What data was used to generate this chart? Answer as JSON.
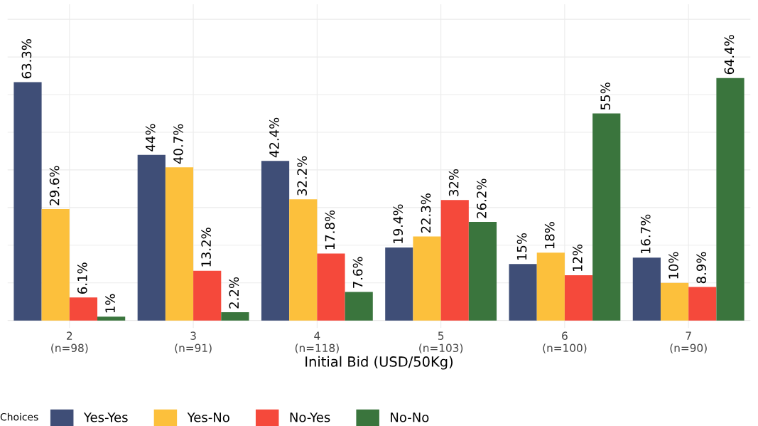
{
  "chart_data": {
    "type": "bar",
    "xlabel": "Initial Bid (USD/50Kg)",
    "legend_title": "Choices",
    "categories": [
      "2\n(n=98)",
      "3\n(n=91)",
      "4\n(n=118)",
      "5\n(n=103)",
      "6\n(n=100)",
      "7\n(n=90)"
    ],
    "series": [
      {
        "name": "Yes-Yes",
        "color": "#3f4e77",
        "values": [
          63.3,
          44,
          42.4,
          19.4,
          15,
          16.7
        ],
        "value_labels": [
          "63.3%",
          "44%",
          "42.4%",
          "19.4%",
          "15%",
          "16.7%"
        ]
      },
      {
        "name": "Yes-No",
        "color": "#fcc03c",
        "values": [
          29.6,
          40.7,
          32.2,
          22.3,
          18,
          10
        ],
        "value_labels": [
          "29.6%",
          "40.7%",
          "32.2%",
          "22.3%",
          "18%",
          "10%"
        ]
      },
      {
        "name": "No-Yes",
        "color": "#f5493b",
        "values": [
          6.1,
          13.2,
          17.8,
          32,
          12,
          8.9
        ],
        "value_labels": [
          "6.1%",
          "13.2%",
          "17.8%",
          "32%",
          "12%",
          "8.9%"
        ]
      },
      {
        "name": "No-No",
        "color": "#3a753d",
        "values": [
          1,
          2.2,
          7.6,
          26.2,
          55,
          64.4
        ],
        "value_labels": [
          "1%",
          "2.2%",
          "7.6%",
          "26.2%",
          "55%",
          "64.4%"
        ]
      }
    ],
    "ylim": [
      -2,
      84
    ],
    "yticks": [
      {
        "value": 0,
        "label": null
      },
      {
        "value": 10,
        "label": null
      },
      {
        "value": 20,
        "label": null
      },
      {
        "value": 30,
        "label": null
      },
      {
        "value": 40,
        "label": null
      },
      {
        "value": 50,
        "label": null
      },
      {
        "value": 60,
        "label": null
      },
      {
        "value": 70,
        "label": null
      },
      {
        "value": 80,
        "label": null
      }
    ],
    "grid": true,
    "legend": "bottom",
    "tick_labels": "x"
  }
}
